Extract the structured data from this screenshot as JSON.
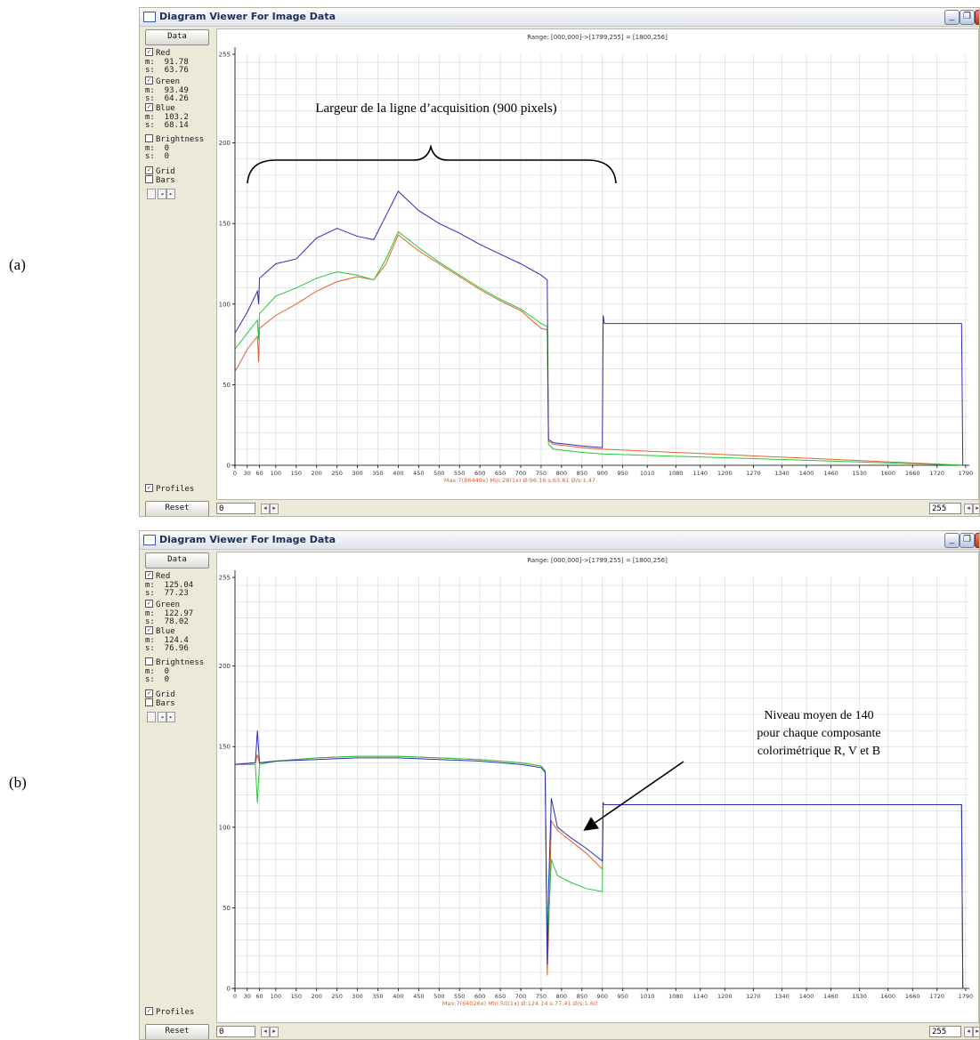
{
  "labels": {
    "a": "(a)",
    "b": "(b)"
  },
  "window": {
    "title": "Diagram Viewer For Image Data"
  },
  "colors": {
    "red": "#e2622a",
    "green": "#22c83a",
    "blue": "#2c2cb8",
    "stats": "#e2622a"
  },
  "panels": [
    {
      "range_text": "Range: [000,000]->[1799,255] = [1800,256]",
      "sidebar": {
        "data_button": "Data",
        "red": {
          "label": "Red",
          "m": "m:  91.78",
          "s": "s:  63.76"
        },
        "green": {
          "label": "Green",
          "m": "m:  93.49",
          "s": "s:  64.26"
        },
        "blue": {
          "label": "Blue",
          "m": "m:  103.2",
          "s": "s:  68.14"
        },
        "brightness": {
          "label": "Brightness",
          "m": "m:  0",
          "s": "s:  0"
        },
        "grid": "Grid",
        "bars": "Bars",
        "profiles": "Profiles",
        "reset": "Reset"
      },
      "stats_text": "Max:7(86449x)  Min:28(1x)  Ø:96.16  s:65.61  Ø/s:1.47",
      "field_left": "0",
      "field_right": "255",
      "annotation": "Largeur de la ligne d’acquisition (900 pixels)"
    },
    {
      "range_text": "Range: [000,000]->[1799,255] = [1800,256]",
      "sidebar": {
        "data_button": "Data",
        "red": {
          "label": "Red",
          "m": "m:  125.04",
          "s": "s:  77.23"
        },
        "green": {
          "label": "Green",
          "m": "m:  122.97",
          "s": "s:  78.02"
        },
        "blue": {
          "label": "Blue",
          "m": "m:  124.4",
          "s": "s:  76.96"
        },
        "brightness": {
          "label": "Brightness",
          "m": "m:  0",
          "s": "s:  0"
        },
        "grid": "Grid",
        "bars": "Bars",
        "profiles": "Profiles",
        "reset": "Reset"
      },
      "stats_text": "Max:7(64026x)  Min:50(1x)  Ø:124.14  s:77.41  Ø/s:1.60",
      "field_left": "0",
      "field_right": "255",
      "annotation_lines": [
        "Niveau moyen de 140",
        "pour chaque composante",
        "colorimétrique R, V et B"
      ]
    }
  ],
  "chart_data": [
    {
      "type": "line",
      "xlim": [
        0,
        1799
      ],
      "ylim": [
        0,
        255
      ],
      "x_ticks": [
        "0",
        "30",
        "60",
        "100",
        "150",
        "200",
        "250",
        "300",
        "350",
        "400",
        "450",
        "500",
        "550",
        "600",
        "650",
        "700",
        "750",
        "800",
        "850",
        "900",
        "950",
        "1010",
        "1080",
        "1140",
        "1200",
        "1270",
        "1340",
        "1400",
        "1460",
        "1530",
        "1600",
        "1660",
        "1720",
        "1790"
      ],
      "y_ticks": [
        "0",
        "50",
        "100",
        "150",
        "200",
        "255"
      ],
      "grid": true,
      "series": [
        {
          "name": "Red",
          "x": [
            0,
            30,
            55,
            58,
            60,
            100,
            150,
            200,
            250,
            300,
            340,
            370,
            400,
            450,
            500,
            550,
            600,
            650,
            700,
            750,
            765,
            768,
            780,
            850,
            900,
            902,
            1790
          ],
          "y": [
            58,
            72,
            80,
            64,
            85,
            93,
            100,
            108,
            114,
            117,
            115,
            125,
            143,
            133,
            125,
            117,
            109,
            102,
            96,
            85,
            84,
            15,
            13,
            11,
            10,
            10,
            0
          ]
        },
        {
          "name": "Green",
          "x": [
            0,
            30,
            55,
            58,
            60,
            100,
            150,
            200,
            250,
            300,
            340,
            370,
            400,
            450,
            500,
            550,
            600,
            650,
            700,
            750,
            765,
            768,
            780,
            850,
            900,
            902,
            1790
          ],
          "y": [
            72,
            82,
            90,
            78,
            94,
            105,
            110,
            116,
            120,
            118,
            115,
            128,
            145,
            135,
            126,
            118,
            110,
            103,
            97,
            88,
            86,
            13,
            10,
            8,
            7,
            7,
            0
          ]
        },
        {
          "name": "Blue",
          "x": [
            0,
            30,
            55,
            58,
            60,
            100,
            150,
            200,
            250,
            300,
            340,
            370,
            400,
            450,
            500,
            550,
            600,
            650,
            700,
            750,
            765,
            768,
            780,
            850,
            900,
            902,
            905,
            1780,
            1783,
            1790
          ],
          "y": [
            82,
            95,
            108,
            100,
            116,
            125,
            128,
            141,
            147,
            142,
            140,
            155,
            170,
            158,
            150,
            144,
            137,
            131,
            125,
            118,
            115,
            16,
            14,
            12,
            11,
            93,
            88,
            88,
            0,
            0
          ]
        }
      ]
    },
    {
      "type": "line",
      "xlim": [
        0,
        1799
      ],
      "ylim": [
        0,
        255
      ],
      "x_ticks": [
        "0",
        "30",
        "60",
        "100",
        "150",
        "200",
        "250",
        "300",
        "350",
        "400",
        "450",
        "500",
        "550",
        "600",
        "650",
        "700",
        "750",
        "800",
        "850",
        "900",
        "950",
        "1010",
        "1080",
        "1140",
        "1200",
        "1270",
        "1340",
        "1400",
        "1460",
        "1530",
        "1600",
        "1660",
        "1720",
        "1790"
      ],
      "y_ticks": [
        "0",
        "50",
        "100",
        "150",
        "200",
        "255"
      ],
      "grid": true,
      "series": [
        {
          "name": "Red",
          "x": [
            0,
            50,
            55,
            60,
            100,
            200,
            300,
            400,
            500,
            600,
            700,
            750,
            760,
            765,
            768,
            775,
            790,
            820,
            860,
            900,
            902,
            905,
            1780,
            1783,
            1790
          ],
          "y": [
            139,
            140,
            145,
            140,
            141,
            143,
            144,
            144,
            143,
            142,
            140,
            138,
            135,
            8,
            30,
            104,
            98,
            92,
            84,
            74,
            115,
            114,
            114,
            0,
            0
          ]
        },
        {
          "name": "Green",
          "x": [
            0,
            50,
            55,
            60,
            100,
            200,
            300,
            400,
            500,
            600,
            700,
            750,
            760,
            765,
            768,
            775,
            790,
            820,
            860,
            900,
            902,
            905,
            1780,
            1783,
            1790
          ],
          "y": [
            139,
            139,
            115,
            139,
            141,
            143,
            144,
            144,
            143,
            142,
            140,
            138,
            135,
            20,
            40,
            80,
            70,
            66,
            62,
            60,
            115,
            114,
            114,
            0,
            0
          ]
        },
        {
          "name": "Blue",
          "x": [
            0,
            50,
            55,
            60,
            100,
            200,
            300,
            400,
            500,
            600,
            700,
            750,
            760,
            765,
            768,
            775,
            790,
            820,
            860,
            900,
            902,
            905,
            1780,
            1783,
            1790
          ],
          "y": [
            139,
            140,
            160,
            140,
            141,
            142,
            143,
            143,
            142,
            141,
            139,
            137,
            134,
            15,
            60,
            118,
            100,
            94,
            87,
            79,
            115,
            114,
            114,
            0,
            0
          ]
        }
      ]
    }
  ]
}
